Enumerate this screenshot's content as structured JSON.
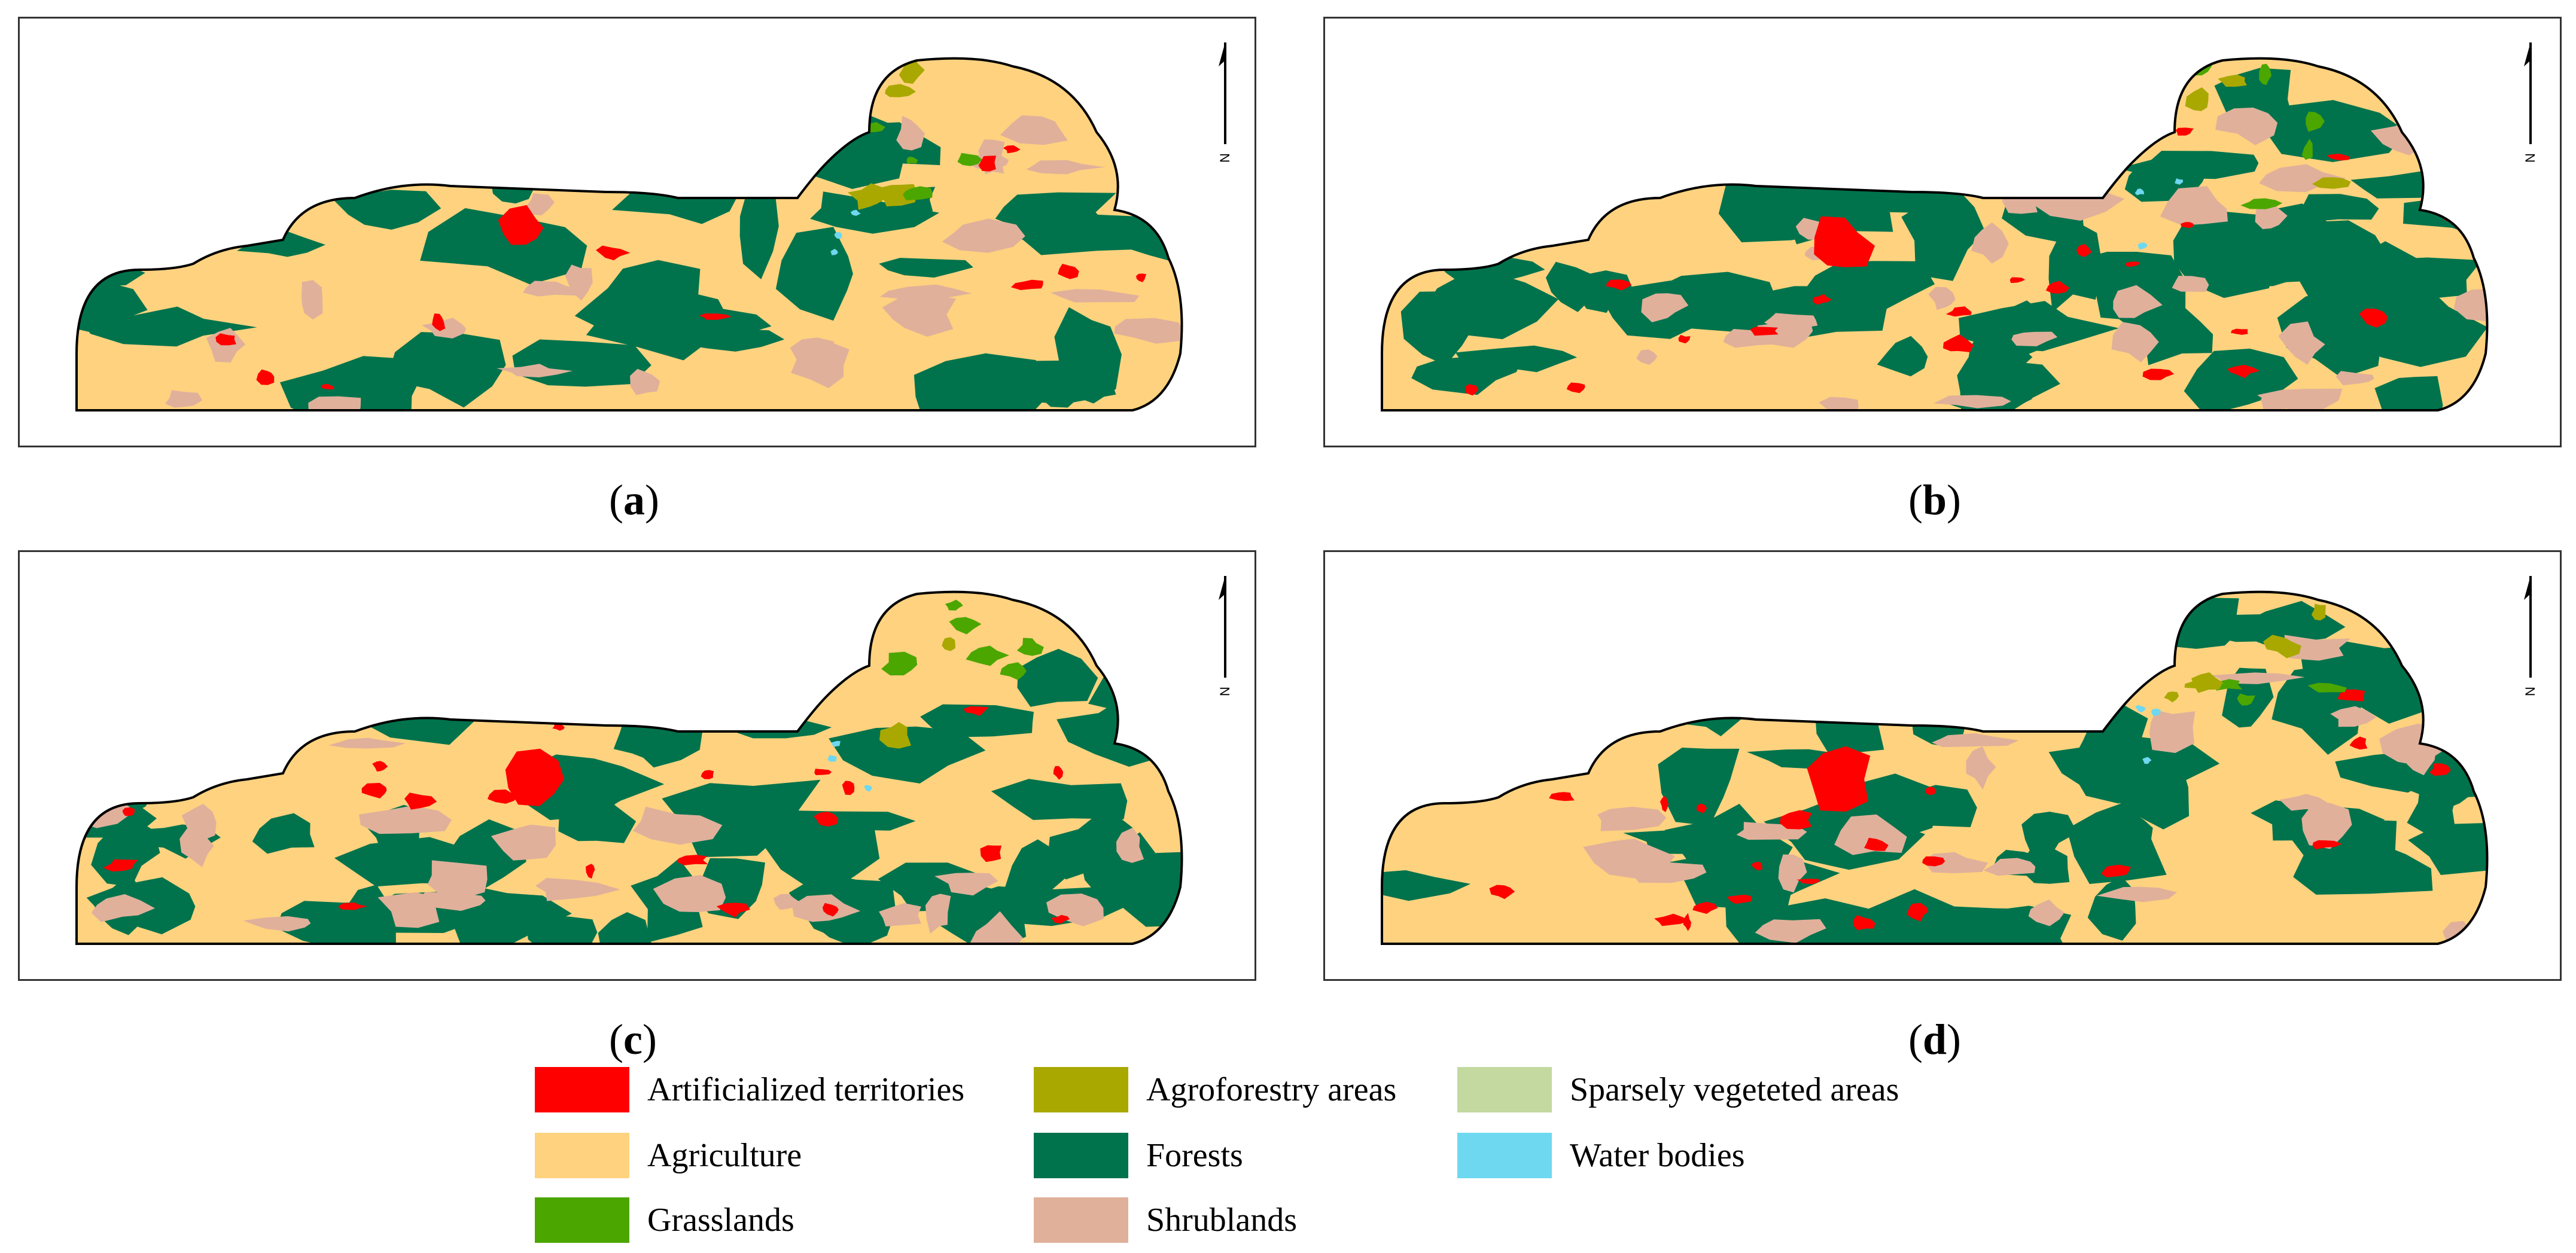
{
  "panels": [
    {
      "id": "a",
      "caption": "a"
    },
    {
      "id": "b",
      "caption": "b"
    },
    {
      "id": "c",
      "caption": "c"
    },
    {
      "id": "d",
      "caption": "d"
    }
  ],
  "north_arrow": {
    "label": "N"
  },
  "colors": {
    "artificialized": "#ff0000",
    "agriculture": "#fed27f",
    "grasslands": "#4ca600",
    "agroforestry": "#a8a800",
    "forests": "#00734c",
    "shrublands": "#e0b09b",
    "sparse": "#c3d9a0",
    "water": "#6ed8f0"
  },
  "legend": {
    "artificialized": "Artificialized territories",
    "agriculture": "Agriculture",
    "grasslands": "Grasslands",
    "agroforestry": "Agroforestry areas",
    "forests": "Forests",
    "shrublands": "Shrublands",
    "sparse": "Sparsely vegeteted areas",
    "water": "Water bodies"
  }
}
